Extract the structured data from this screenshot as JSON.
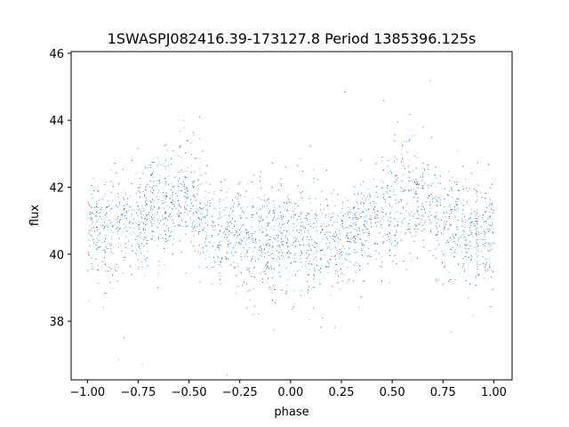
{
  "chart_data": {
    "type": "scatter",
    "title": "1SWASPJ082416.39-173127.8 Period 1385396.125s",
    "xlabel": "phase",
    "ylabel": "flux",
    "xlim": [
      -1.08,
      1.09
    ],
    "ylim": [
      36.25,
      46.05
    ],
    "xticks": [
      -1.0,
      -0.75,
      -0.5,
      -0.25,
      0.0,
      0.25,
      0.5,
      0.75,
      1.0
    ],
    "xtick_labels": [
      "−1.00",
      "−0.75",
      "−0.50",
      "−0.25",
      "0.00",
      "0.25",
      "0.50",
      "0.75",
      "1.00"
    ],
    "yticks": [
      38,
      40,
      42,
      44,
      46
    ],
    "ytick_labels": [
      "38",
      "40",
      "42",
      "44",
      "46"
    ],
    "grid": false,
    "point_color": "#1f77b4",
    "series": [
      {
        "points_note": "dense light-curve scatter; profile below gives mean flux and scatter vs phase (symmetric, repeated for phase < 0)",
        "profile_phase": [
          0.0,
          0.05,
          0.1,
          0.15,
          0.2,
          0.25,
          0.3,
          0.35,
          0.4,
          0.45,
          0.5,
          0.55,
          0.6,
          0.65,
          0.7,
          0.75,
          0.8,
          0.85,
          0.9,
          0.95,
          1.0
        ],
        "profile_mean_flux": [
          40.4,
          40.6,
          40.2,
          40.6,
          40.3,
          40.5,
          40.8,
          40.7,
          41.0,
          41.2,
          41.6,
          41.8,
          41.6,
          41.4,
          41.3,
          41.0,
          41.0,
          40.8,
          40.5,
          40.7,
          40.6
        ],
        "profile_spread": [
          0.9,
          0.9,
          0.9,
          0.8,
          0.8,
          0.7,
          0.7,
          0.7,
          0.8,
          0.9,
          1.0,
          1.0,
          0.9,
          0.8,
          0.8,
          0.8,
          0.8,
          0.8,
          0.8,
          0.8,
          0.8
        ]
      }
    ]
  }
}
